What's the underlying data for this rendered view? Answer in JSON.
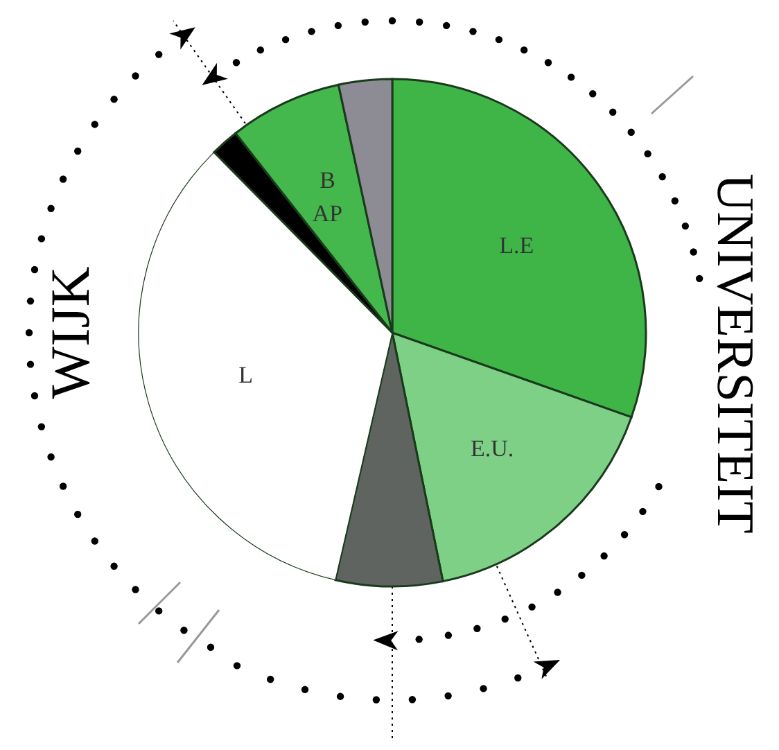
{
  "chart_data": {
    "type": "pie",
    "categories": [
      "L.E",
      "E.U.",
      null,
      "L",
      null,
      "B AP",
      null
    ],
    "values": [
      30.4,
      16.4,
      6.8,
      34.0,
      1.8,
      7.2,
      3.4
    ],
    "colors": [
      "#3fb548",
      "#7fd087",
      "#5f6461",
      "#ffffff",
      "#000000",
      "#45b84d",
      "#8d8b93"
    ],
    "annotations": [
      "WIJK",
      "UNIVERSITEIT"
    ]
  }
}
